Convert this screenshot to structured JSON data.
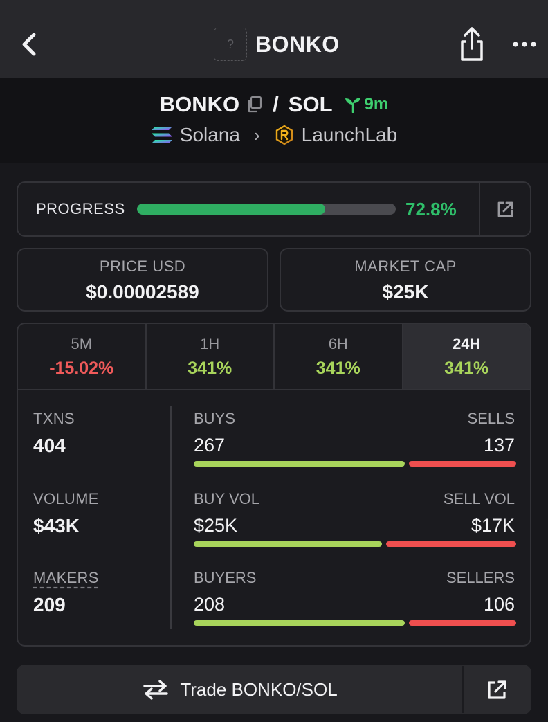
{
  "header": {
    "title": "BONKO",
    "token_icon_glyph": "?",
    "back_icon": "chevron-left-icon",
    "share_icon": "share-icon",
    "more_icon": "more-horizontal-icon"
  },
  "pair": {
    "base": "BONKO",
    "separator": "/",
    "quote": "SOL",
    "age": "9m",
    "chain": "Solana",
    "dex": "LaunchLab"
  },
  "progress": {
    "label": "PROGRESS",
    "value_text": "72.8%",
    "value": 72.8
  },
  "stats": {
    "price_label": "PRICE USD",
    "price_value": "$0.00002589",
    "mcap_label": "MARKET CAP",
    "mcap_value": "$25K"
  },
  "timeframes": [
    {
      "label": "5M",
      "change": "-15.02%",
      "direction": "down",
      "active": false
    },
    {
      "label": "1H",
      "change": "341%",
      "direction": "up",
      "active": false
    },
    {
      "label": "6H",
      "change": "341%",
      "direction": "up",
      "active": false
    },
    {
      "label": "24H",
      "change": "341%",
      "direction": "up",
      "active": true
    }
  ],
  "metrics": {
    "txns_label": "TXNS",
    "txns_value": "404",
    "volume_label": "VOLUME",
    "volume_value": "$43K",
    "makers_label": "MAKERS",
    "makers_value": "209",
    "buys_label": "BUYS",
    "buys_value": "267",
    "sells_label": "SELLS",
    "sells_value": "137",
    "buy_vol_label": "BUY VOL",
    "buy_vol_value": "$25K",
    "sell_vol_label": "SELL VOL",
    "sell_vol_value": "$17K",
    "buyers_label": "BUYERS",
    "buyers_value": "208",
    "sellers_label": "SELLERS",
    "sellers_value": "106"
  },
  "ratios": {
    "txns_buy_share": 0.66,
    "volume_buy_share": 0.59,
    "makers_buy_share": 0.66
  },
  "trade": {
    "label": "Trade BONKO/SOL"
  },
  "colors": {
    "positive": "#a8d45b",
    "negative": "#f05a5a",
    "progress": "#2fae62",
    "age": "#3ecf6f"
  }
}
